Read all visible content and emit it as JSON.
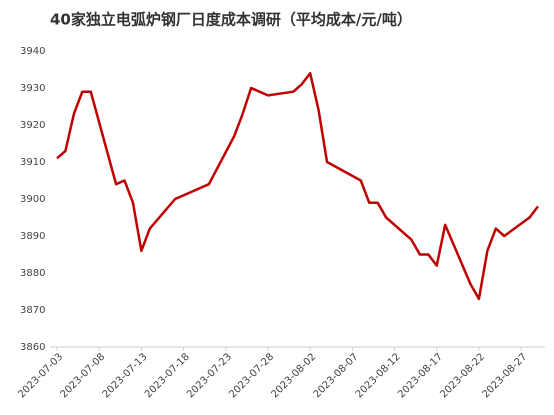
{
  "chart_data": {
    "type": "line",
    "title": "40家独立电弧炉钢厂日度成本调研（平均成本/元/吨）",
    "x": [
      "2023-07-03",
      "2023-07-04",
      "2023-07-05",
      "2023-07-06",
      "2023-07-07",
      "2023-07-10",
      "2023-07-11",
      "2023-07-12",
      "2023-07-13",
      "2023-07-14",
      "2023-07-17",
      "2023-07-21",
      "2023-07-24",
      "2023-07-25",
      "2023-07-26",
      "2023-07-28",
      "2023-07-31",
      "2023-08-01",
      "2023-08-02",
      "2023-08-03",
      "2023-08-04",
      "2023-08-08",
      "2023-08-09",
      "2023-08-10",
      "2023-08-11",
      "2023-08-14",
      "2023-08-15",
      "2023-08-16",
      "2023-08-17",
      "2023-08-18",
      "2023-08-21",
      "2023-08-22",
      "2023-08-23",
      "2023-08-24",
      "2023-08-25",
      "2023-08-28",
      "2023-08-29"
    ],
    "series": [
      {
        "name": "平均成本",
        "color": "#c00000",
        "values": [
          3911,
          3913,
          3923,
          3929,
          3929,
          3904,
          3905,
          3899,
          3886,
          3892,
          3900,
          3904,
          3917,
          3923,
          3930,
          3928,
          3929,
          3931,
          3934,
          3924,
          3910,
          3905,
          3899,
          3899,
          3895,
          3889,
          3885,
          3885,
          3882,
          3893,
          3877,
          3873,
          3886,
          3892,
          3890,
          3895,
          3898
        ]
      }
    ],
    "xlim": [
      "2023-07-03",
      "2023-08-29"
    ],
    "xticks": [
      "2023-07-03",
      "2023-07-08",
      "2023-07-13",
      "2023-07-18",
      "2023-07-23",
      "2023-07-28",
      "2023-08-02",
      "2023-08-07",
      "2023-08-12",
      "2023-08-17",
      "2023-08-22",
      "2023-08-27"
    ],
    "ylim": [
      3860,
      3940
    ],
    "yticks": [
      3860,
      3870,
      3880,
      3890,
      3900,
      3910,
      3920,
      3930,
      3940
    ]
  }
}
